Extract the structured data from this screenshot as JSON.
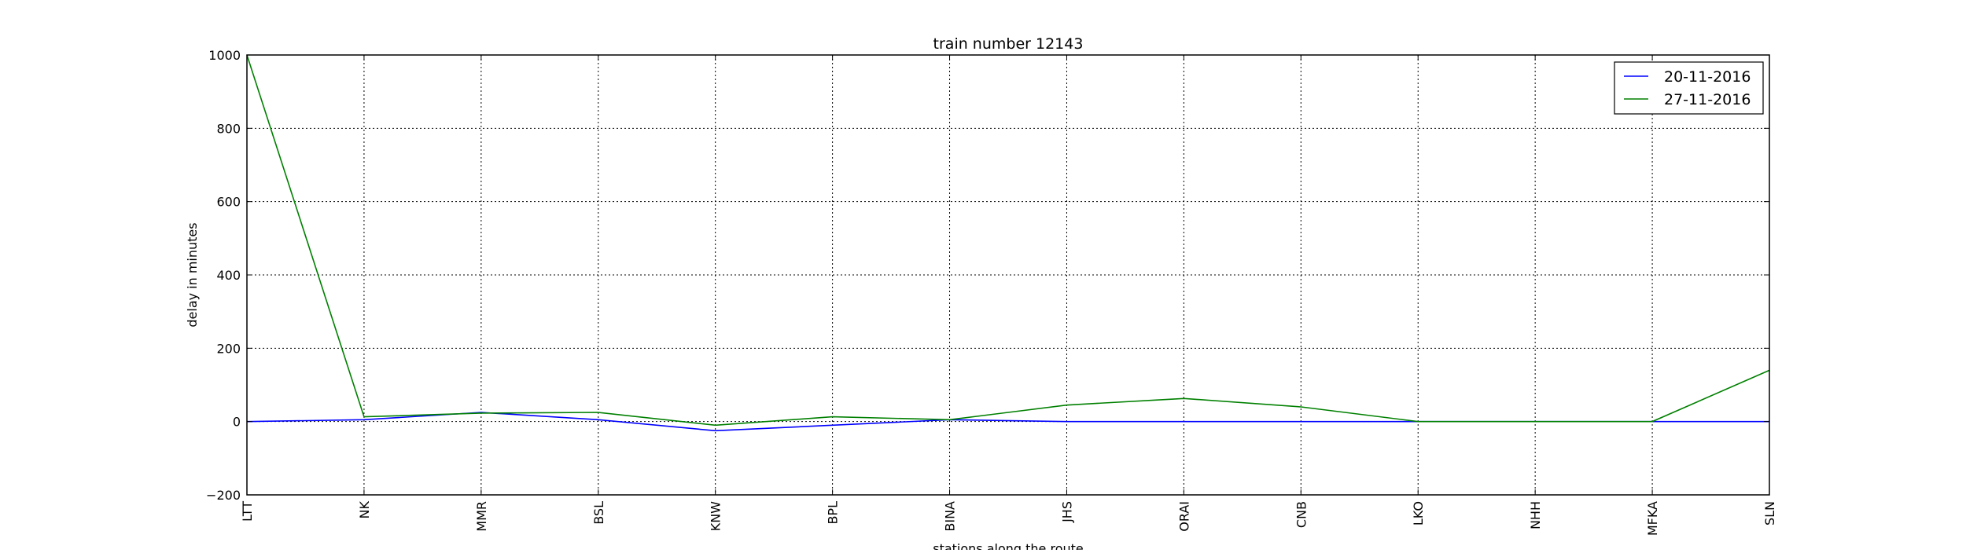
{
  "chart_data": {
    "type": "line",
    "title": "train number 12143",
    "xlabel": "stations along the route",
    "ylabel": "delay in minutes",
    "ylim": [
      -200,
      1000
    ],
    "yticks": [
      -200,
      0,
      200,
      400,
      600,
      800,
      1000
    ],
    "ytick_labels": [
      "−200",
      "0",
      "200",
      "400",
      "600",
      "800",
      "1000"
    ],
    "grid": true,
    "legend_position": "top-right",
    "categories": [
      "LTT",
      "NK",
      "MMR",
      "BSL",
      "KNW",
      "BPL",
      "BINA",
      "JHS",
      "ORAI",
      "CNB",
      "LKO",
      "NHH",
      "MFKA",
      "SLN"
    ],
    "series": [
      {
        "name": "20-11-2016",
        "color": "#0000ff",
        "values": [
          0,
          5,
          25,
          5,
          -25,
          -10,
          5,
          0,
          0,
          0,
          0,
          0,
          0,
          0
        ]
      },
      {
        "name": "27-11-2016",
        "color": "#008000",
        "values": [
          1000,
          13,
          23,
          25,
          -10,
          13,
          5,
          45,
          63,
          40,
          0,
          0,
          0,
          140
        ]
      }
    ]
  }
}
